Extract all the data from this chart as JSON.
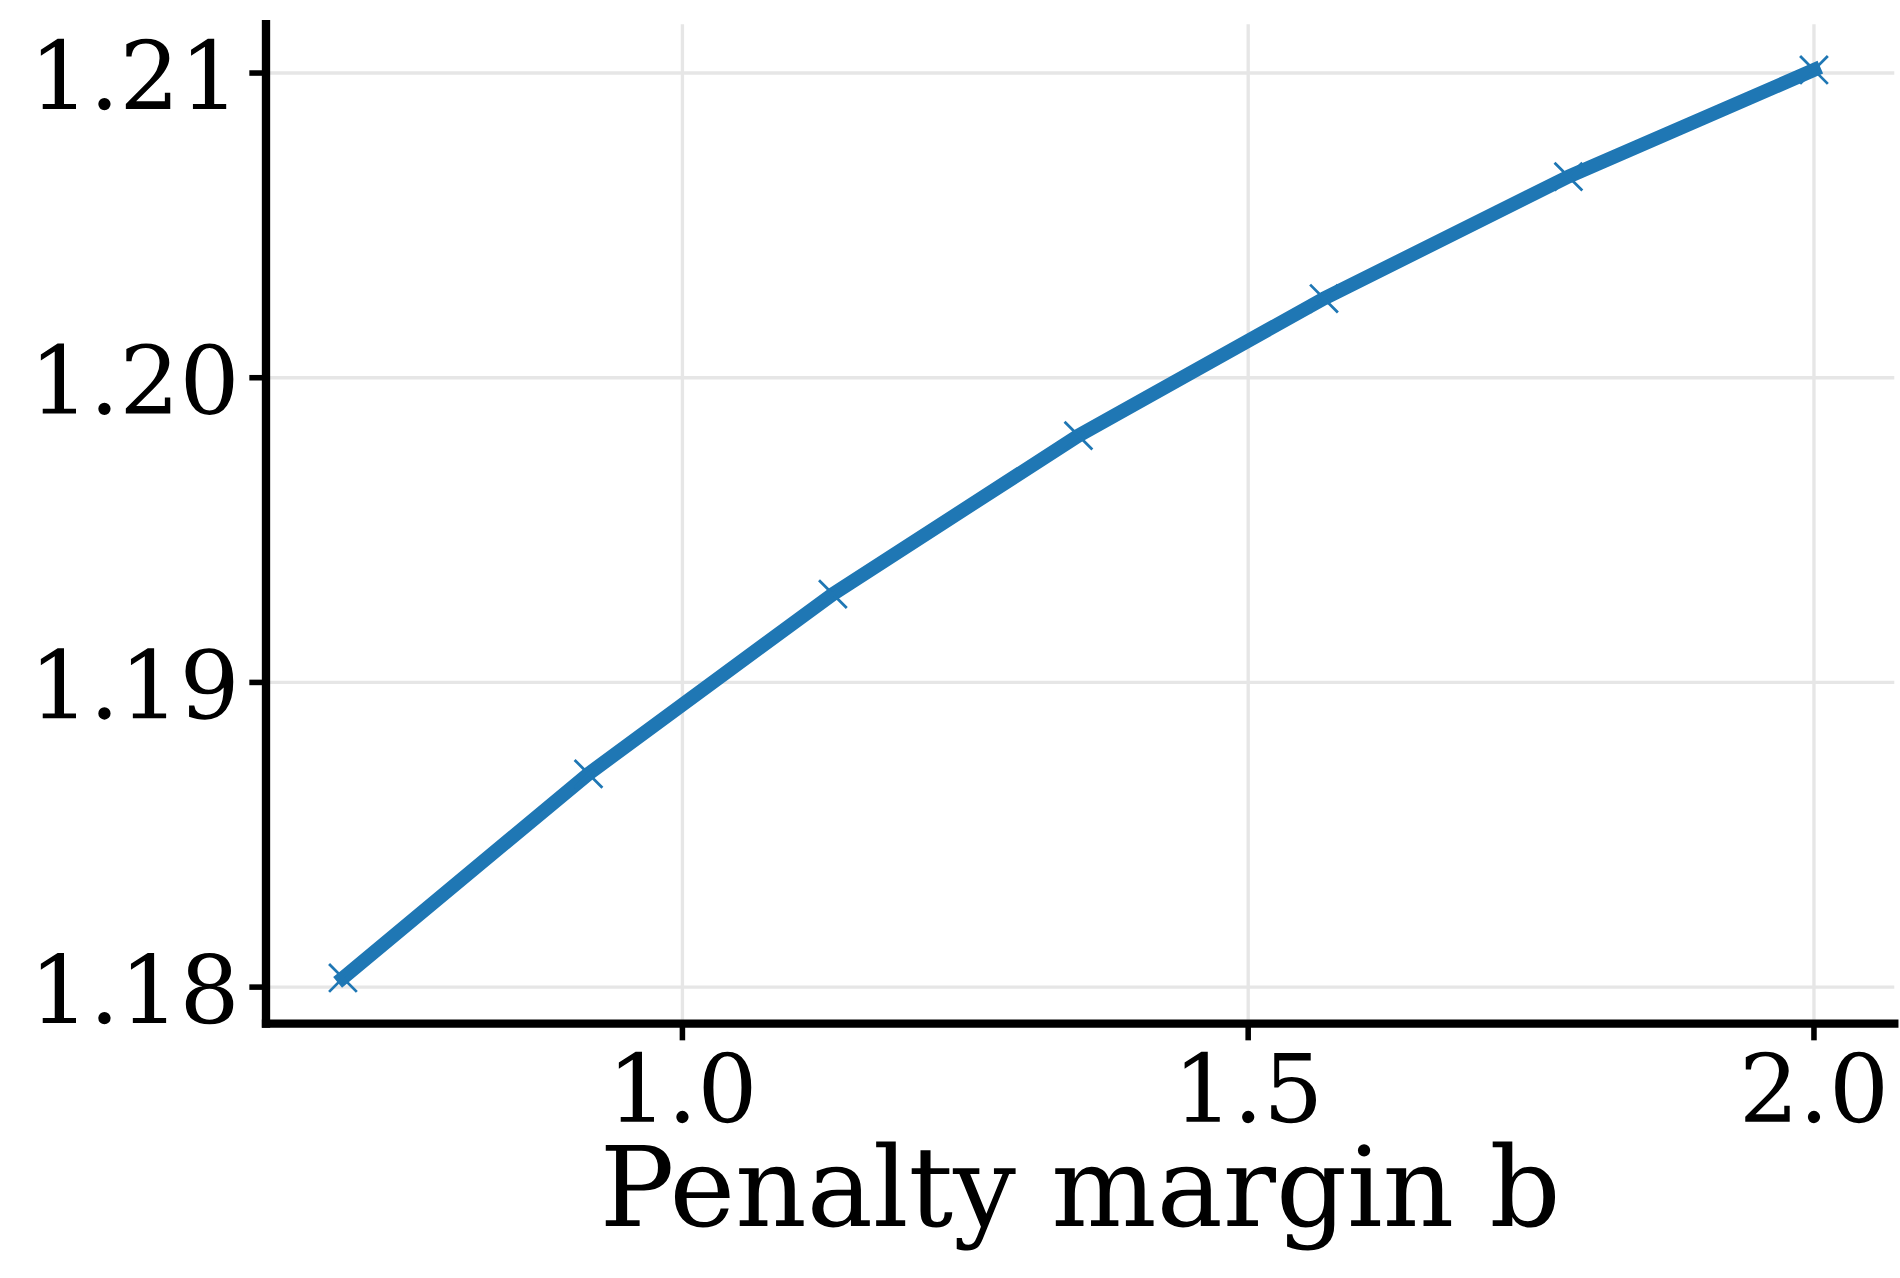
{
  "chart_data": {
    "type": "line",
    "xlabel": "Penalty margin b",
    "x": [
      0.7,
      0.917,
      1.133,
      1.35,
      1.567,
      1.783,
      2.0
    ],
    "series": [
      {
        "color": "#1f77b4",
        "values": [
          1.1803,
          1.187,
          1.1929,
          1.1981,
          1.2026,
          1.2066,
          1.2101
        ]
      }
    ],
    "xlim": [
      0.632,
      2.071
    ],
    "ylim": [
      1.1788,
      1.2116
    ],
    "xticks": [
      {
        "value": 1.0,
        "label": "1.0"
      },
      {
        "value": 1.5,
        "label": "1.5"
      },
      {
        "value": 2.0,
        "label": "2.0"
      }
    ],
    "yticks": [
      1.18,
      1.19,
      {
        "value": 1.2,
        "label": "1.20"
      },
      1.21
    ],
    "grid": true,
    "marker": "cross",
    "line_style": "solid"
  }
}
